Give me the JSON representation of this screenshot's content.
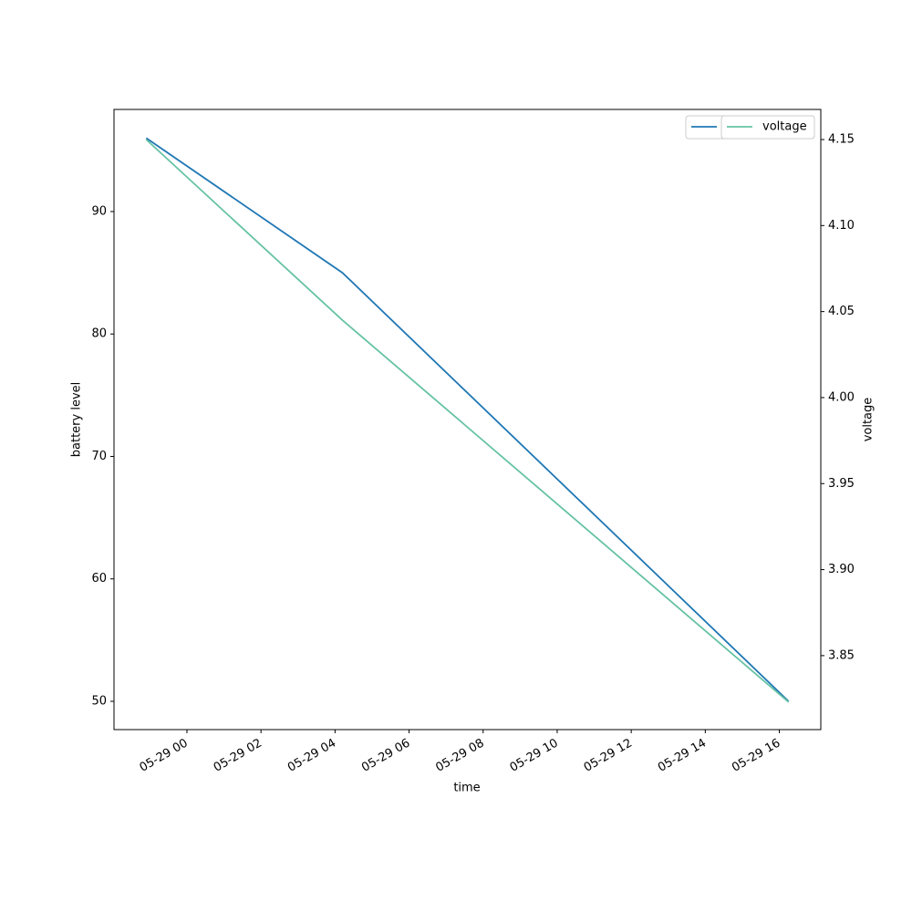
{
  "chart_data": {
    "type": "line",
    "x_label": "time",
    "y_label": "battery level",
    "y2_label": "voltage",
    "x": [
      -1.1,
      4.2,
      16.25
    ],
    "series": [
      {
        "name": "battery level",
        "color": "#1f77b4",
        "values": [
          96,
          85,
          50
        ],
        "legend": "upper right"
      },
      {
        "name": "voltage",
        "color": "#66c2a5",
        "values": [
          4.15,
          4.045,
          3.823
        ],
        "axis": "y2",
        "legend": "upper right"
      }
    ],
    "xlim": [
      -1.97,
      17.12
    ],
    "xticks": [
      {
        "value": 0,
        "label": "05-29 00"
      },
      {
        "value": 2,
        "label": "05-29 02"
      },
      {
        "value": 4,
        "label": "05-29 04"
      },
      {
        "value": 6,
        "label": "05-29 06"
      },
      {
        "value": 8,
        "label": "05-29 08"
      },
      {
        "value": 10,
        "label": "05-29 10"
      },
      {
        "value": 12,
        "label": "05-29 12"
      },
      {
        "value": 14,
        "label": "05-29 14"
      },
      {
        "value": 16,
        "label": "05-29 16"
      }
    ],
    "ylim": [
      47.69,
      98.34
    ],
    "yticks": [
      50,
      60,
      70,
      80,
      90
    ],
    "y2lim": [
      3.807,
      4.1675
    ],
    "y2ticks": [
      3.85,
      {
        "value": 3.9,
        "label": "3.90"
      },
      3.95,
      {
        "value": 4,
        "label": "4.00"
      },
      4.05,
      {
        "value": 4.1,
        "label": "4.10"
      },
      4.15
    ]
  }
}
